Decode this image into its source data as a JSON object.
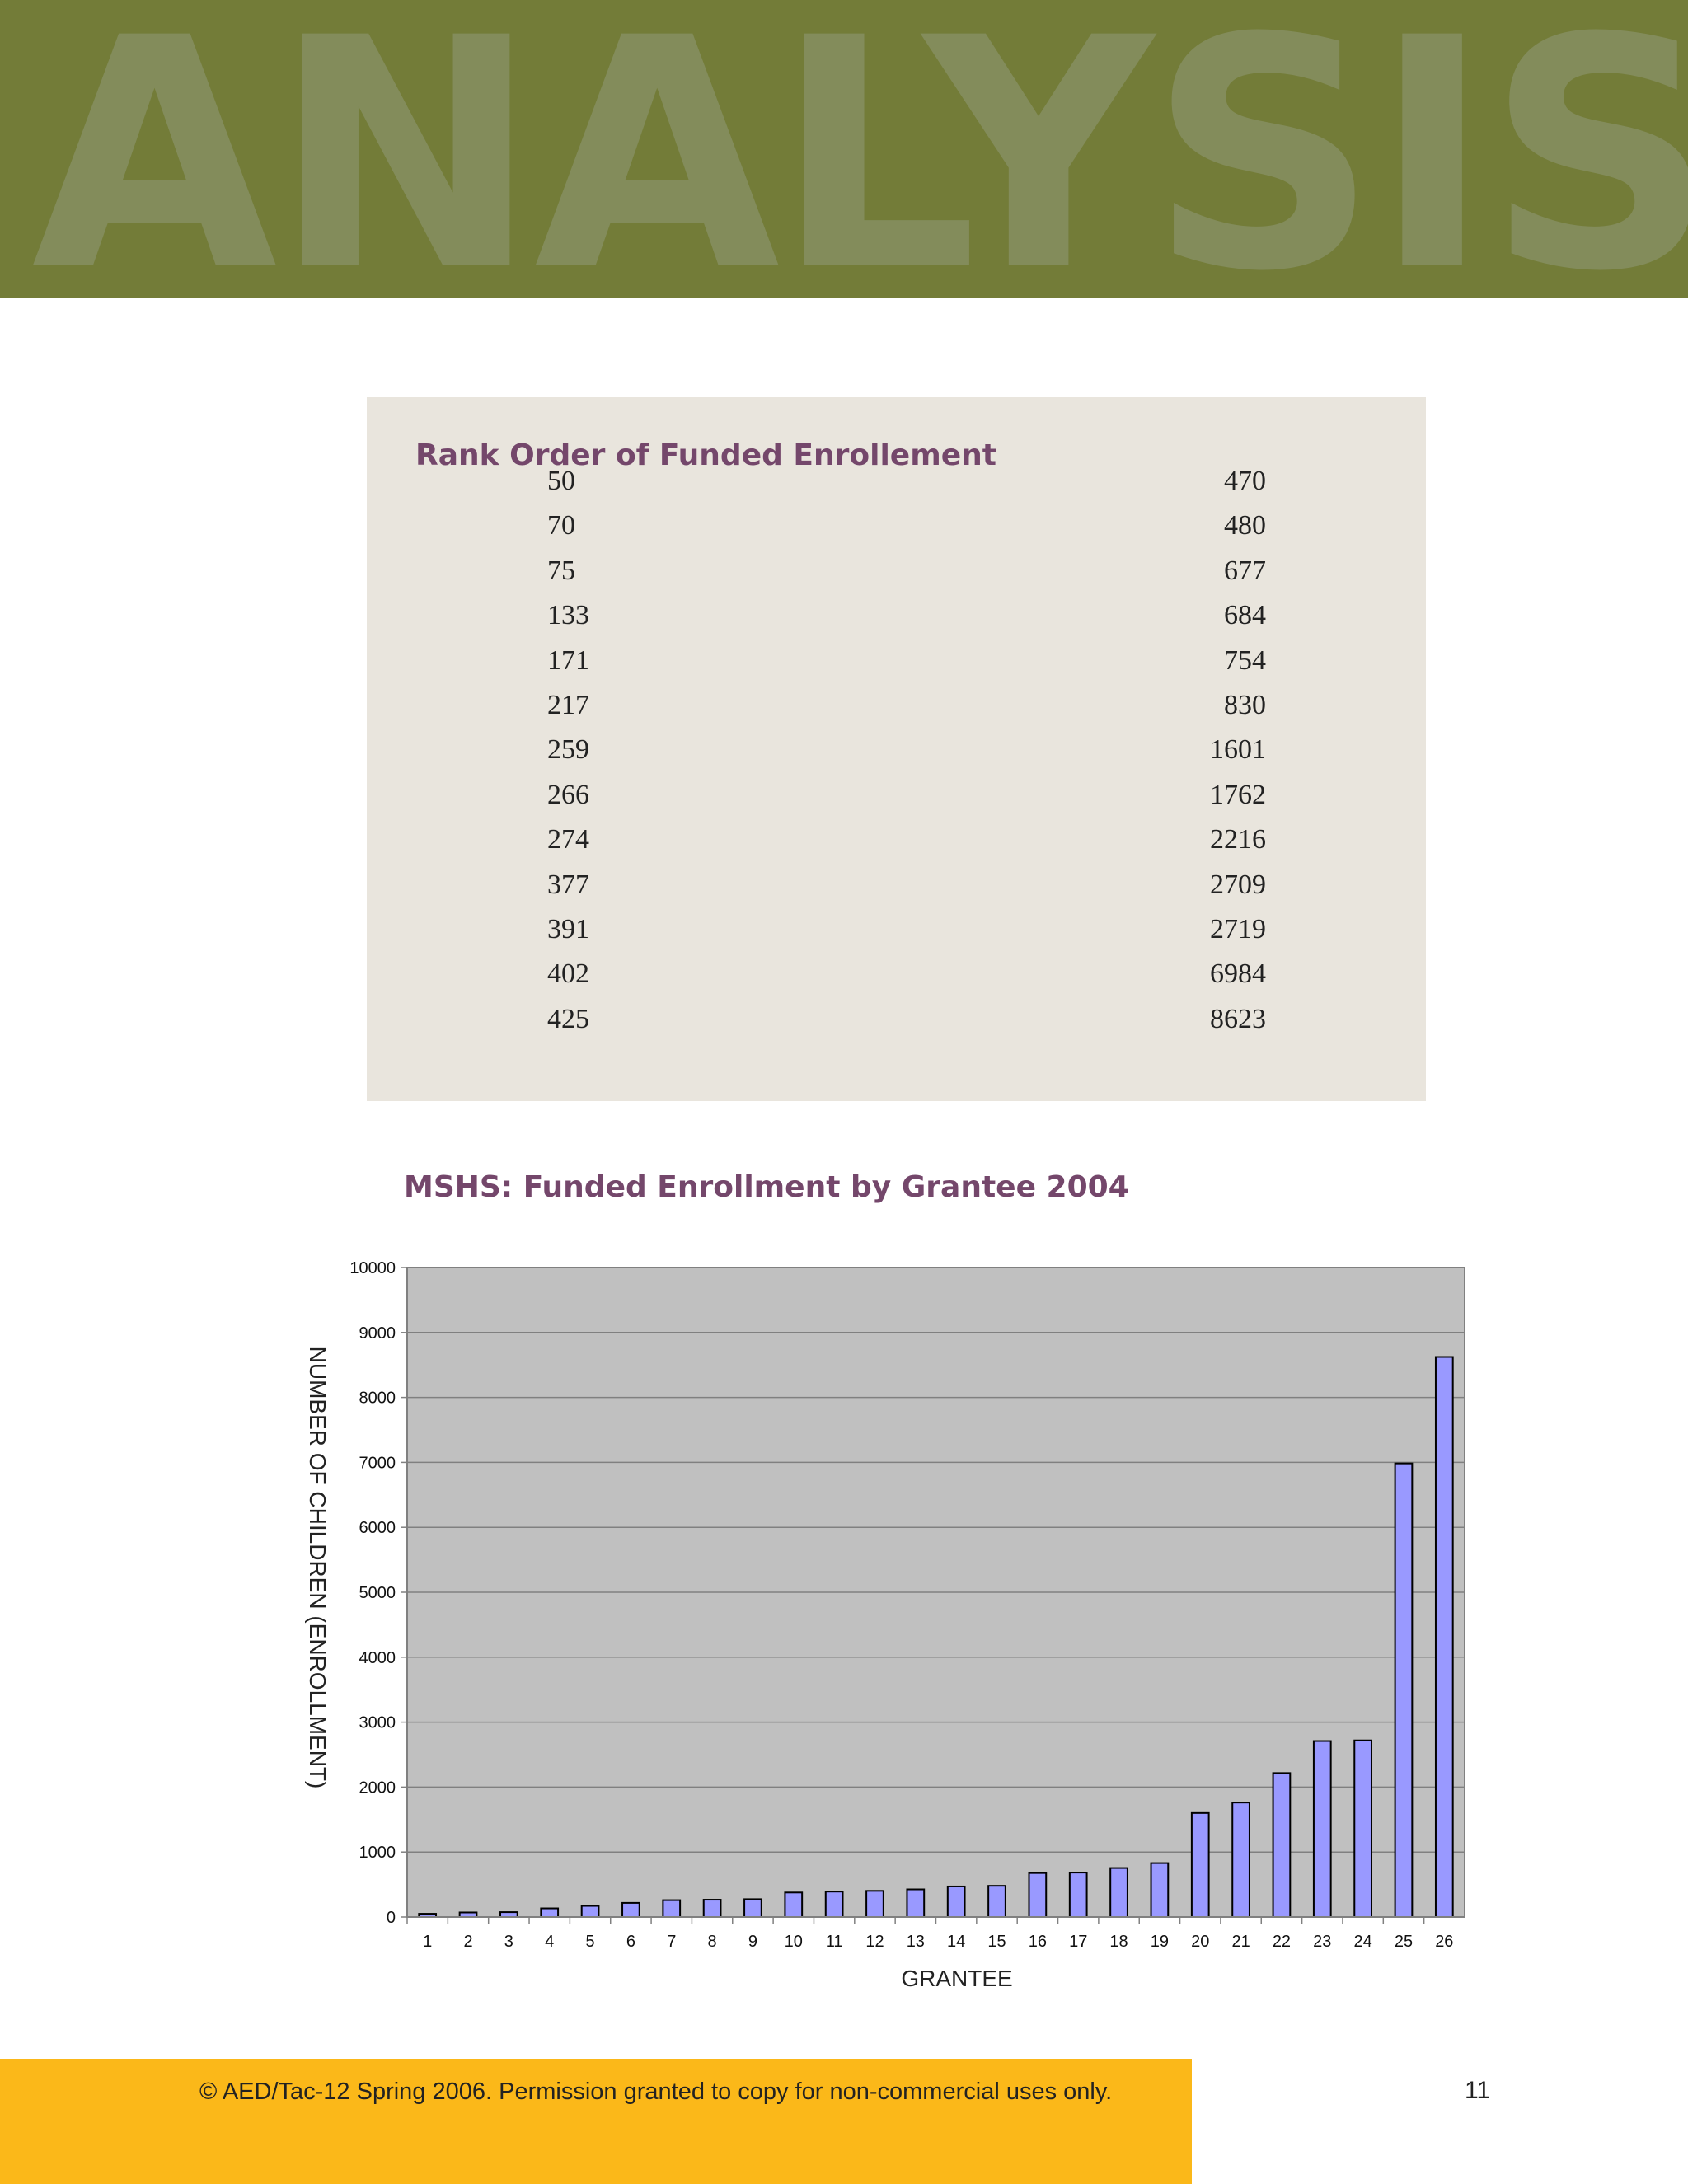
{
  "banner": {
    "word": "ANALYSIS"
  },
  "rank_table": {
    "title": "Rank Order of Funded Enrollement",
    "left_column": [
      "50",
      "70",
      "75",
      "133",
      "171",
      "217",
      "259",
      "266",
      "274",
      "377",
      "391",
      "402",
      "425"
    ],
    "right_column": [
      "470",
      "480",
      "677",
      "684",
      "754",
      "830",
      "1601",
      "1762",
      "2216",
      "2709",
      "2719",
      "6984",
      "8623"
    ]
  },
  "chart_data": {
    "type": "bar",
    "title": "MSHS: Funded Enrollment by Grantee 2004",
    "xlabel": "GRANTEE",
    "ylabel": "NUMBER OF CHILDREN (ENROLLMENT)",
    "categories": [
      "1",
      "2",
      "3",
      "4",
      "5",
      "6",
      "7",
      "8",
      "9",
      "10",
      "11",
      "12",
      "13",
      "14",
      "15",
      "16",
      "17",
      "18",
      "19",
      "20",
      "21",
      "22",
      "23",
      "24",
      "25",
      "26"
    ],
    "values": [
      50,
      70,
      75,
      133,
      171,
      217,
      259,
      266,
      274,
      377,
      391,
      402,
      425,
      470,
      480,
      677,
      684,
      754,
      830,
      1601,
      1762,
      2216,
      2709,
      2719,
      6984,
      8623
    ],
    "ylim": [
      0,
      10000
    ],
    "yticks": [
      "0",
      "1000",
      "2000",
      "3000",
      "4000",
      "5000",
      "6000",
      "7000",
      "8000",
      "9000",
      "10000"
    ],
    "grid": true,
    "legend": false,
    "colors": {
      "bar": "#9999ff",
      "plot_background": "#c0c0c0"
    }
  },
  "footer": {
    "text": "© AED/Tac-12 Spring 2006. Permission granted to copy for non-commercial uses only.",
    "page_number": "11"
  }
}
